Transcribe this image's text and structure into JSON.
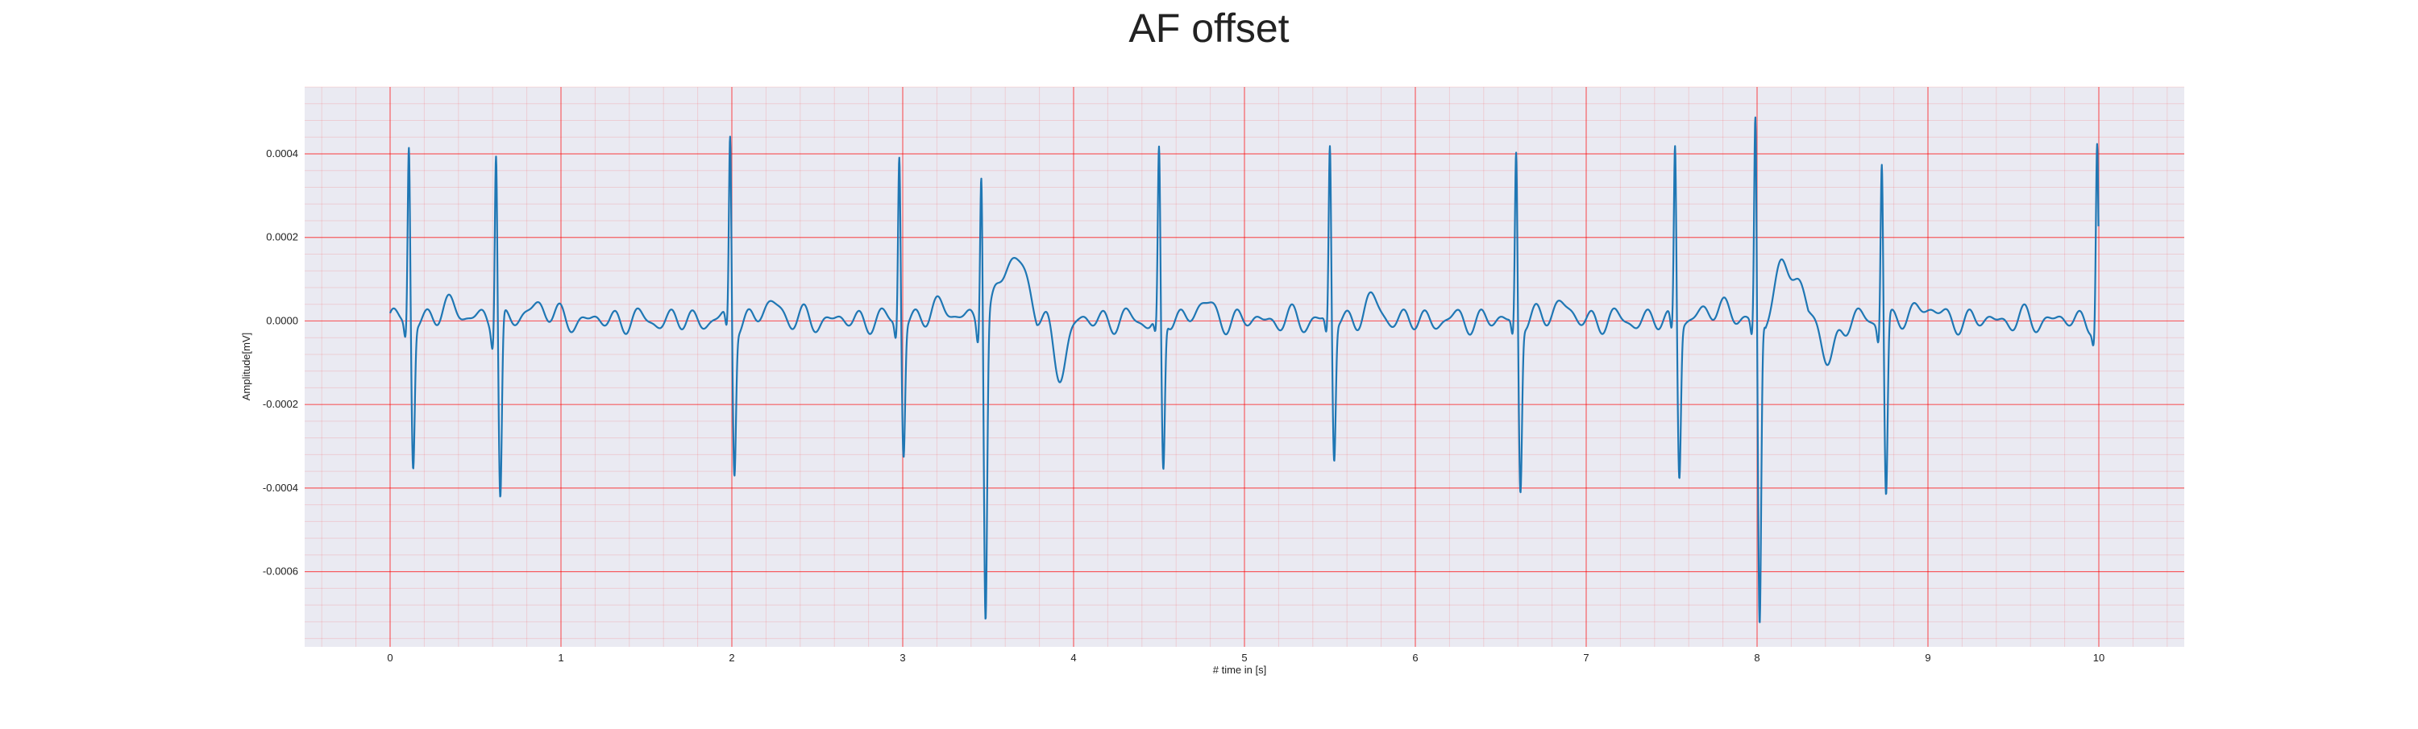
{
  "chart_data": {
    "type": "line",
    "title": "AF offset",
    "xlabel": "# time in [s]",
    "ylabel": "Amplitude[mV]",
    "xlim": [
      -0.5,
      10.5
    ],
    "ylim": [
      -0.00078,
      0.00056
    ],
    "xticks": [
      0,
      1,
      2,
      3,
      4,
      5,
      6,
      7,
      8,
      9,
      10
    ],
    "xtick_labels": [
      "0",
      "1",
      "2",
      "3",
      "4",
      "5",
      "6",
      "7",
      "8",
      "9",
      "10"
    ],
    "yticks": [
      0.0004,
      0.0002,
      0.0,
      -0.0002,
      -0.0004,
      -0.0006
    ],
    "ytick_labels": [
      "0.0004",
      "0.0002",
      "0.0000",
      "-0.0002",
      "-0.0004",
      "-0.0006"
    ],
    "grid": true,
    "minor_grid": true,
    "line_color": "#1f77b4",
    "grid_color": "#ff0000",
    "background_color": "#eaeaf2",
    "beats": [
      {
        "t": 0.11,
        "r": 0.00043,
        "s": -0.00034
      },
      {
        "t": 0.62,
        "r": 0.00043,
        "s": -0.00043
      },
      {
        "t": 1.99,
        "r": 0.00044,
        "s": -0.00035
      },
      {
        "t": 2.98,
        "r": 0.00041,
        "s": -0.00031
      },
      {
        "t": 3.46,
        "r": 0.00039,
        "s": -0.0007
      },
      {
        "t": 4.5,
        "r": 0.0004,
        "s": -0.00037
      },
      {
        "t": 5.5,
        "r": 0.00042,
        "s": -0.00033
      },
      {
        "t": 6.59,
        "r": 0.00041,
        "s": -0.0004
      },
      {
        "t": 7.52,
        "r": 0.00043,
        "s": -0.00036
      },
      {
        "t": 7.99,
        "r": 0.0005,
        "s": -0.00073
      },
      {
        "t": 8.73,
        "r": 0.0004,
        "s": -0.00042
      },
      {
        "t": 9.99,
        "r": 0.00042,
        "s": -5e-05
      }
    ],
    "bumps": [
      {
        "t1": 3.5,
        "t2": 3.9,
        "level": 0.00015,
        "dip": -0.00012
      },
      {
        "t1": 8.05,
        "t2": 8.4,
        "level": 0.00013,
        "dip": -0.0001
      }
    ]
  }
}
